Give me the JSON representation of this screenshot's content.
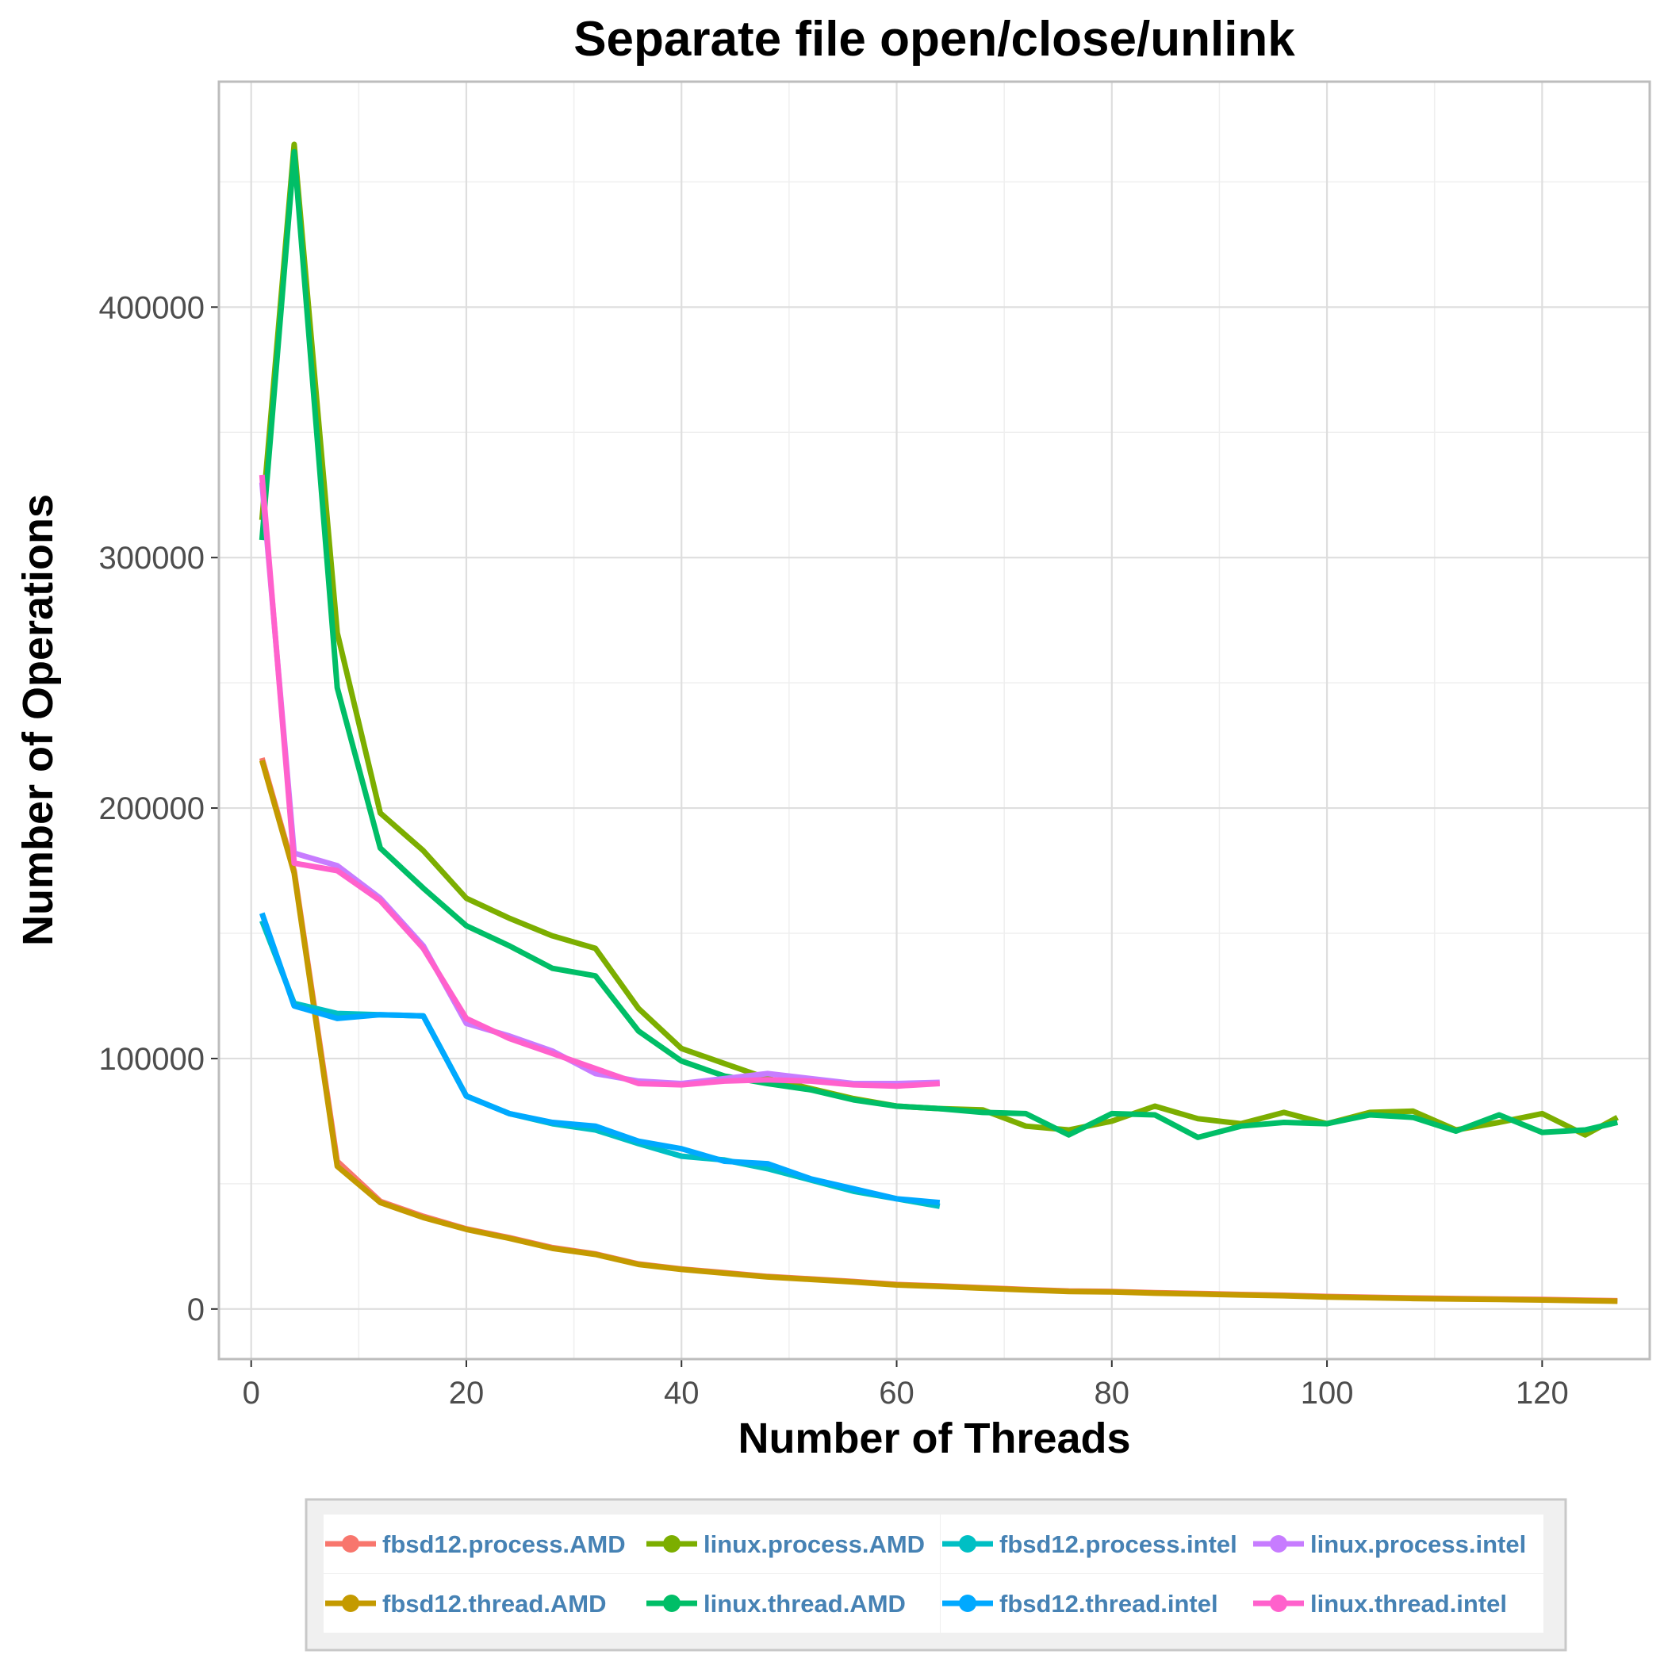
{
  "chart_data": {
    "type": "line",
    "title": "Separate file open/close/unlink",
    "xlabel": "Number of Threads",
    "ylabel": "Number of Operations",
    "xlim": [
      -3,
      130
    ],
    "ylim": [
      -20000,
      490000
    ],
    "x_ticks": [
      0,
      20,
      40,
      60,
      80,
      100,
      120
    ],
    "x_tick_labels": [
      "0",
      "20",
      "40",
      "60",
      "80",
      "100",
      "120"
    ],
    "y_ticks": [
      0,
      100000,
      200000,
      300000,
      400000
    ],
    "y_tick_labels": [
      "0",
      "100000",
      "200000",
      "300000",
      "400000"
    ],
    "grid": true,
    "legend_position": "bottom",
    "series": [
      {
        "name": "fbsd12.process.AMD",
        "color": "#F8766D",
        "points": [
          [
            1,
            220000
          ],
          [
            4,
            175000
          ],
          [
            8,
            59000
          ],
          [
            12,
            43000
          ],
          [
            16,
            37000
          ],
          [
            20,
            32000
          ],
          [
            24,
            28500
          ],
          [
            28,
            24500
          ],
          [
            32,
            22000
          ],
          [
            36,
            18000
          ],
          [
            40,
            16000
          ],
          [
            44,
            14500
          ],
          [
            48,
            13000
          ],
          [
            52,
            12000
          ],
          [
            56,
            11000
          ],
          [
            60,
            9800
          ],
          [
            64,
            9200
          ],
          [
            68,
            8500
          ],
          [
            72,
            7800
          ],
          [
            76,
            7200
          ],
          [
            80,
            7000
          ],
          [
            84,
            6500
          ],
          [
            88,
            6200
          ],
          [
            92,
            5800
          ],
          [
            96,
            5500
          ],
          [
            100,
            5000
          ],
          [
            104,
            4700
          ],
          [
            108,
            4400
          ],
          [
            112,
            4200
          ],
          [
            116,
            4000
          ],
          [
            120,
            3800
          ],
          [
            124,
            3500
          ],
          [
            127,
            3300
          ]
        ]
      },
      {
        "name": "fbsd12.thread.AMD",
        "color": "#C49A00",
        "points": [
          [
            1,
            219000
          ],
          [
            4,
            174000
          ],
          [
            8,
            57000
          ],
          [
            12,
            42500
          ],
          [
            16,
            36500
          ],
          [
            20,
            31800
          ],
          [
            24,
            28200
          ],
          [
            28,
            24200
          ],
          [
            32,
            21800
          ],
          [
            36,
            17800
          ],
          [
            40,
            15800
          ],
          [
            44,
            14300
          ],
          [
            48,
            12800
          ],
          [
            52,
            11800
          ],
          [
            56,
            10800
          ],
          [
            60,
            9600
          ],
          [
            64,
            9000
          ],
          [
            68,
            8300
          ],
          [
            72,
            7600
          ],
          [
            76,
            7000
          ],
          [
            80,
            6800
          ],
          [
            84,
            6300
          ],
          [
            88,
            6000
          ],
          [
            92,
            5600
          ],
          [
            96,
            5300
          ],
          [
            100,
            4800
          ],
          [
            104,
            4500
          ],
          [
            108,
            4200
          ],
          [
            112,
            4000
          ],
          [
            116,
            3800
          ],
          [
            120,
            3600
          ],
          [
            124,
            3300
          ],
          [
            127,
            3100
          ]
        ]
      },
      {
        "name": "linux.process.AMD",
        "color": "#7CAE00",
        "points": [
          [
            1,
            315000
          ],
          [
            4,
            465000
          ],
          [
            8,
            270000
          ],
          [
            12,
            198000
          ],
          [
            16,
            183000
          ],
          [
            20,
            164000
          ],
          [
            24,
            156000
          ],
          [
            28,
            149000
          ],
          [
            32,
            144000
          ],
          [
            36,
            120000
          ],
          [
            40,
            104000
          ],
          [
            44,
            98000
          ],
          [
            48,
            92000
          ],
          [
            52,
            88000
          ],
          [
            56,
            84000
          ],
          [
            60,
            81000
          ],
          [
            64,
            80000
          ],
          [
            68,
            79500
          ],
          [
            72,
            73000
          ],
          [
            76,
            71500
          ],
          [
            80,
            75000
          ],
          [
            84,
            81000
          ],
          [
            88,
            76000
          ],
          [
            92,
            74000
          ],
          [
            96,
            78500
          ],
          [
            100,
            74000
          ],
          [
            104,
            78500
          ],
          [
            108,
            79000
          ],
          [
            112,
            71500
          ],
          [
            116,
            74500
          ],
          [
            120,
            78000
          ],
          [
            124,
            69500
          ],
          [
            127,
            76500
          ]
        ]
      },
      {
        "name": "linux.thread.AMD",
        "color": "#00BE67",
        "points": [
          [
            1,
            307000
          ],
          [
            4,
            462000
          ],
          [
            8,
            248000
          ],
          [
            12,
            184000
          ],
          [
            16,
            168000
          ],
          [
            20,
            153000
          ],
          [
            24,
            145000
          ],
          [
            28,
            136000
          ],
          [
            32,
            133000
          ],
          [
            36,
            111000
          ],
          [
            40,
            99000
          ],
          [
            44,
            93000
          ],
          [
            48,
            90000
          ],
          [
            52,
            87500
          ],
          [
            56,
            83500
          ],
          [
            60,
            81000
          ],
          [
            64,
            80000
          ],
          [
            68,
            78500
          ],
          [
            72,
            78000
          ],
          [
            76,
            69500
          ],
          [
            80,
            78000
          ],
          [
            84,
            77500
          ],
          [
            88,
            68500
          ],
          [
            92,
            73000
          ],
          [
            96,
            74500
          ],
          [
            100,
            74000
          ],
          [
            104,
            77500
          ],
          [
            108,
            76500
          ],
          [
            112,
            71000
          ],
          [
            116,
            77500
          ],
          [
            120,
            70500
          ],
          [
            124,
            71500
          ],
          [
            127,
            74500
          ]
        ]
      },
      {
        "name": "fbsd12.process.intel",
        "color": "#00BFC4",
        "points": [
          [
            1,
            155000
          ],
          [
            4,
            122000
          ],
          [
            8,
            118000
          ],
          [
            12,
            117500
          ],
          [
            16,
            117000
          ],
          [
            20,
            85000
          ],
          [
            24,
            78000
          ],
          [
            28,
            74000
          ],
          [
            32,
            71500
          ],
          [
            36,
            66000
          ],
          [
            40,
            61000
          ],
          [
            44,
            59500
          ],
          [
            48,
            56000
          ],
          [
            52,
            51500
          ],
          [
            56,
            47000
          ],
          [
            60,
            44000
          ],
          [
            64,
            41000
          ]
        ]
      },
      {
        "name": "fbsd12.thread.intel",
        "color": "#00A9FF",
        "points": [
          [
            1,
            158000
          ],
          [
            4,
            121000
          ],
          [
            8,
            116000
          ],
          [
            12,
            117500
          ],
          [
            16,
            117000
          ],
          [
            20,
            85000
          ],
          [
            24,
            78000
          ],
          [
            28,
            74500
          ],
          [
            32,
            73000
          ],
          [
            36,
            67000
          ],
          [
            40,
            64000
          ],
          [
            44,
            59000
          ],
          [
            48,
            58000
          ],
          [
            52,
            52000
          ],
          [
            56,
            48000
          ],
          [
            60,
            44000
          ],
          [
            64,
            42500
          ]
        ]
      },
      {
        "name": "linux.process.intel",
        "color": "#C77CFF",
        "points": [
          [
            1,
            330000
          ],
          [
            4,
            182000
          ],
          [
            8,
            177000
          ],
          [
            12,
            164000
          ],
          [
            16,
            145000
          ],
          [
            20,
            114000
          ],
          [
            24,
            109000
          ],
          [
            28,
            103000
          ],
          [
            32,
            94000
          ],
          [
            36,
            91000
          ],
          [
            40,
            90000
          ],
          [
            44,
            92000
          ],
          [
            48,
            94000
          ],
          [
            52,
            92000
          ],
          [
            56,
            90000
          ],
          [
            60,
            90000
          ],
          [
            64,
            90500
          ]
        ]
      },
      {
        "name": "linux.thread.intel",
        "color": "#FF61CC",
        "points": [
          [
            1,
            333000
          ],
          [
            4,
            178000
          ],
          [
            8,
            175000
          ],
          [
            12,
            163000
          ],
          [
            16,
            144000
          ],
          [
            20,
            116000
          ],
          [
            24,
            108000
          ],
          [
            28,
            102000
          ],
          [
            32,
            96000
          ],
          [
            36,
            90000
          ],
          [
            40,
            89500
          ],
          [
            44,
            91000
          ],
          [
            48,
            91500
          ],
          [
            52,
            91000
          ],
          [
            56,
            89500
          ],
          [
            60,
            89000
          ],
          [
            64,
            90000
          ]
        ]
      }
    ],
    "legend_rows": [
      [
        "fbsd12.process.AMD",
        "linux.process.AMD",
        "fbsd12.process.intel",
        "linux.process.intel"
      ],
      [
        "fbsd12.thread.AMD",
        "linux.thread.AMD",
        "fbsd12.thread.intel",
        "linux.thread.intel"
      ]
    ],
    "colors": {
      "panel_border": "#bdbdbd",
      "grid_major": "#dedede",
      "grid_minor": "#efefef",
      "legend_bg": "#f0f0f0",
      "legend_key_bg": "#ffffff",
      "legend_text": "#4682b4"
    }
  }
}
